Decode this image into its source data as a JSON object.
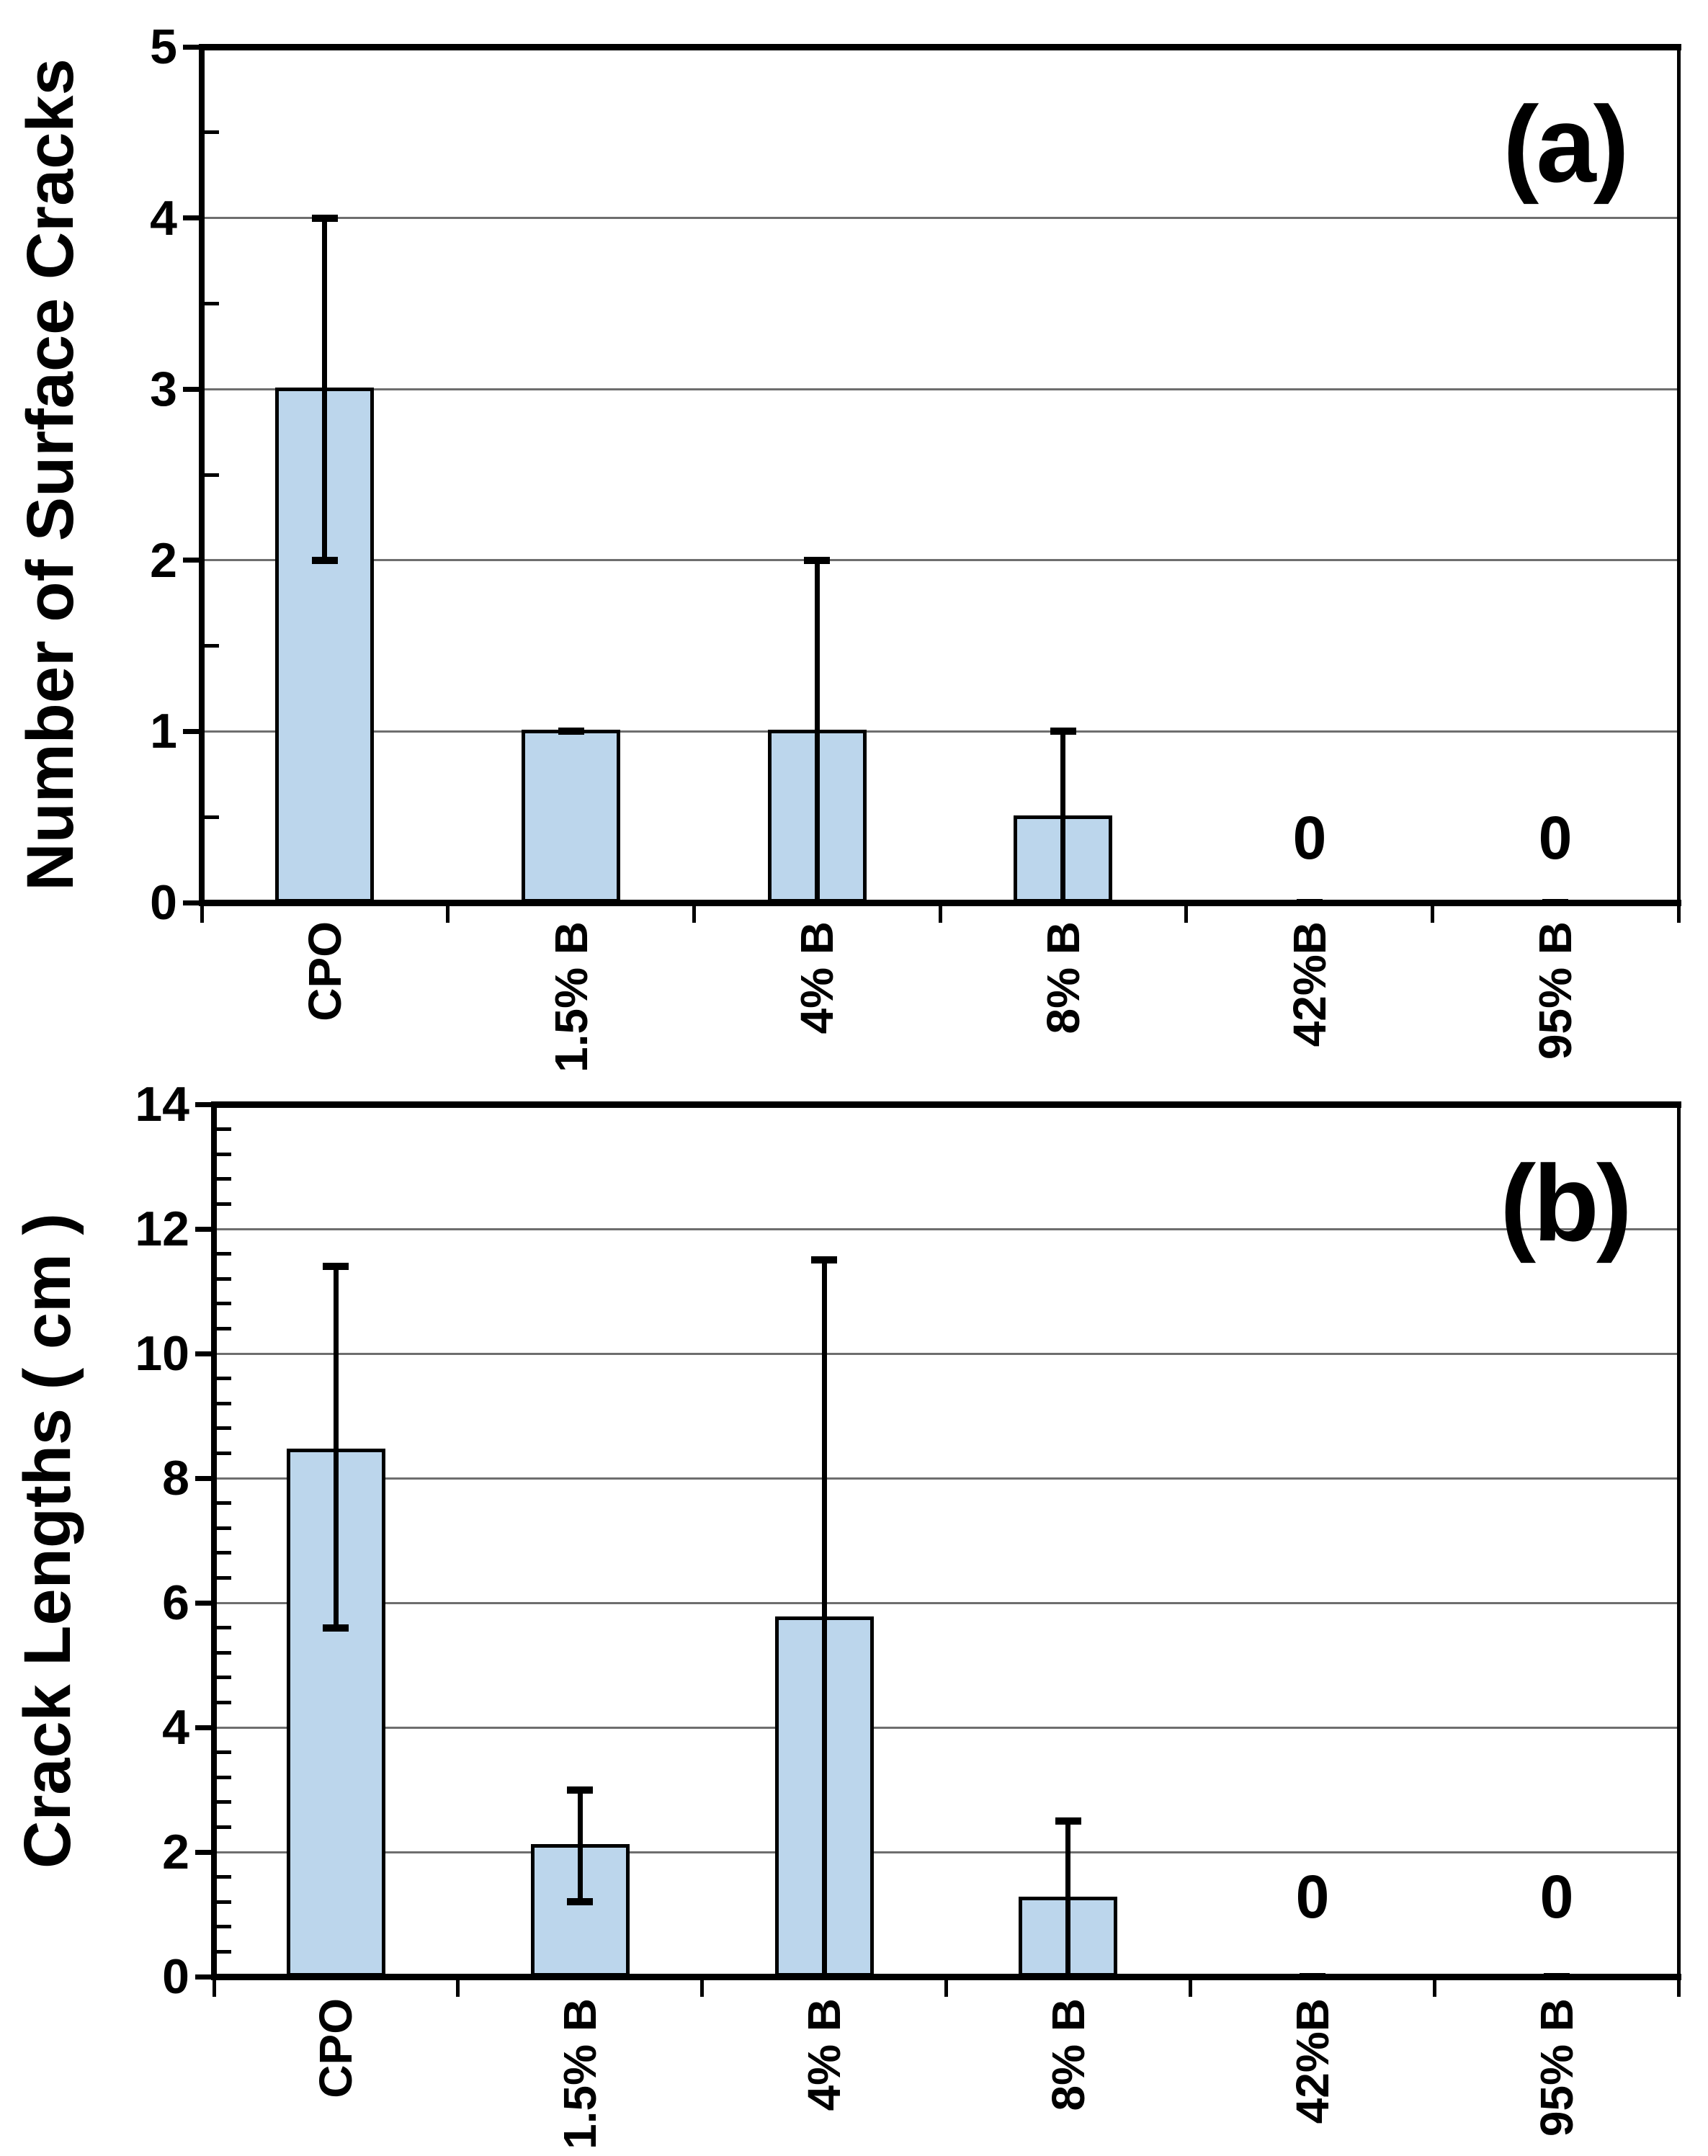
{
  "page": {
    "background": "#ffffff"
  },
  "styles": {
    "bar_fill": "#BCD6EC",
    "bar_border": "#000000",
    "gridline_color": "#6e6e6e",
    "axis_color": "#000000",
    "text_color": "#000000"
  },
  "chart_data": [
    {
      "type": "bar",
      "panel_label": "(a)",
      "title": "",
      "xlabel": "",
      "ylabel": "Number of Surface Cracks",
      "ylim": [
        0,
        5
      ],
      "y_major_step": 1,
      "y_minor_step": 0.5,
      "y_tick_labels": [
        "0",
        "1",
        "2",
        "3",
        "4",
        "5"
      ],
      "grid": "horizontal-major",
      "legend": "none",
      "categories": [
        "CPO",
        "1.5% B",
        "4% B",
        "8% B",
        "42%B",
        "95% B"
      ],
      "values": [
        3,
        1,
        1,
        0.5,
        0,
        0
      ],
      "error_whisker_low": [
        2,
        1,
        0,
        0,
        0,
        0
      ],
      "error_whisker_high": [
        4,
        1,
        2,
        1,
        0,
        0
      ],
      "zero_value_annotations": [
        {
          "category": "42%B",
          "text": "0"
        },
        {
          "category": "95% B",
          "text": "0"
        }
      ]
    },
    {
      "type": "bar",
      "panel_label": "(b)",
      "title": "",
      "xlabel": "",
      "ylabel": "Crack Lengths ( cm )",
      "ylim": [
        0,
        14
      ],
      "y_major_step": 2,
      "y_minor_step": 0.4,
      "y_tick_labels": [
        "0",
        "2",
        "4",
        "6",
        "8",
        "10",
        "12",
        "14"
      ],
      "grid": "horizontal-major",
      "legend": "none",
      "categories": [
        "CPO",
        "1.5% B",
        "4% B",
        "8% B",
        "42%B",
        "95% B"
      ],
      "values": [
        8.45,
        2.1,
        5.75,
        1.25,
        0,
        0
      ],
      "error_whisker_low": [
        5.6,
        1.2,
        0,
        0,
        0,
        0
      ],
      "error_whisker_high": [
        11.4,
        3.0,
        11.5,
        2.5,
        0,
        0
      ],
      "zero_value_annotations": [
        {
          "category": "42%B",
          "text": "0"
        },
        {
          "category": "95% B",
          "text": "0"
        }
      ]
    }
  ]
}
